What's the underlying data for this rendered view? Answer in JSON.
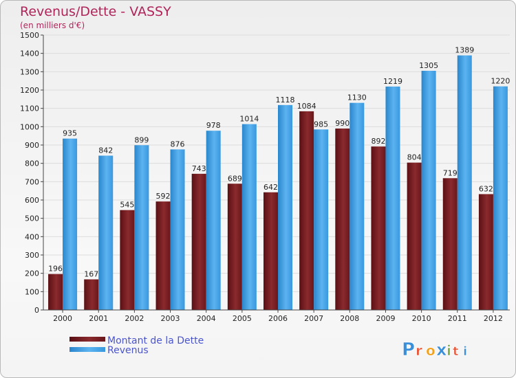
{
  "chart_data": {
    "type": "bar",
    "title": "Revenus/Dette - VASSY",
    "subtitle": "(en milliers d'€)",
    "categories": [
      "2000",
      "2001",
      "2002",
      "2003",
      "2004",
      "2005",
      "2006",
      "2007",
      "2008",
      "2009",
      "2010",
      "2011",
      "2012"
    ],
    "series": [
      {
        "name": "Montant de la Dette",
        "color": "#7a1e22",
        "values": [
          196,
          167,
          545,
          592,
          743,
          689,
          642,
          1084,
          990,
          892,
          804,
          719,
          632
        ]
      },
      {
        "name": "Revenus",
        "color": "#3d9fe3",
        "values": [
          935,
          842,
          899,
          876,
          978,
          1014,
          1118,
          985,
          1130,
          1219,
          1305,
          1389,
          1220
        ]
      }
    ],
    "ylim": [
      0,
      1500
    ],
    "yticks": [
      0,
      100,
      200,
      300,
      400,
      500,
      600,
      700,
      800,
      900,
      1000,
      1100,
      1200,
      1300,
      1400,
      1500
    ],
    "grid": true,
    "legend": "bottom-left"
  },
  "branding": {
    "logo_text": "Proxiti"
  }
}
